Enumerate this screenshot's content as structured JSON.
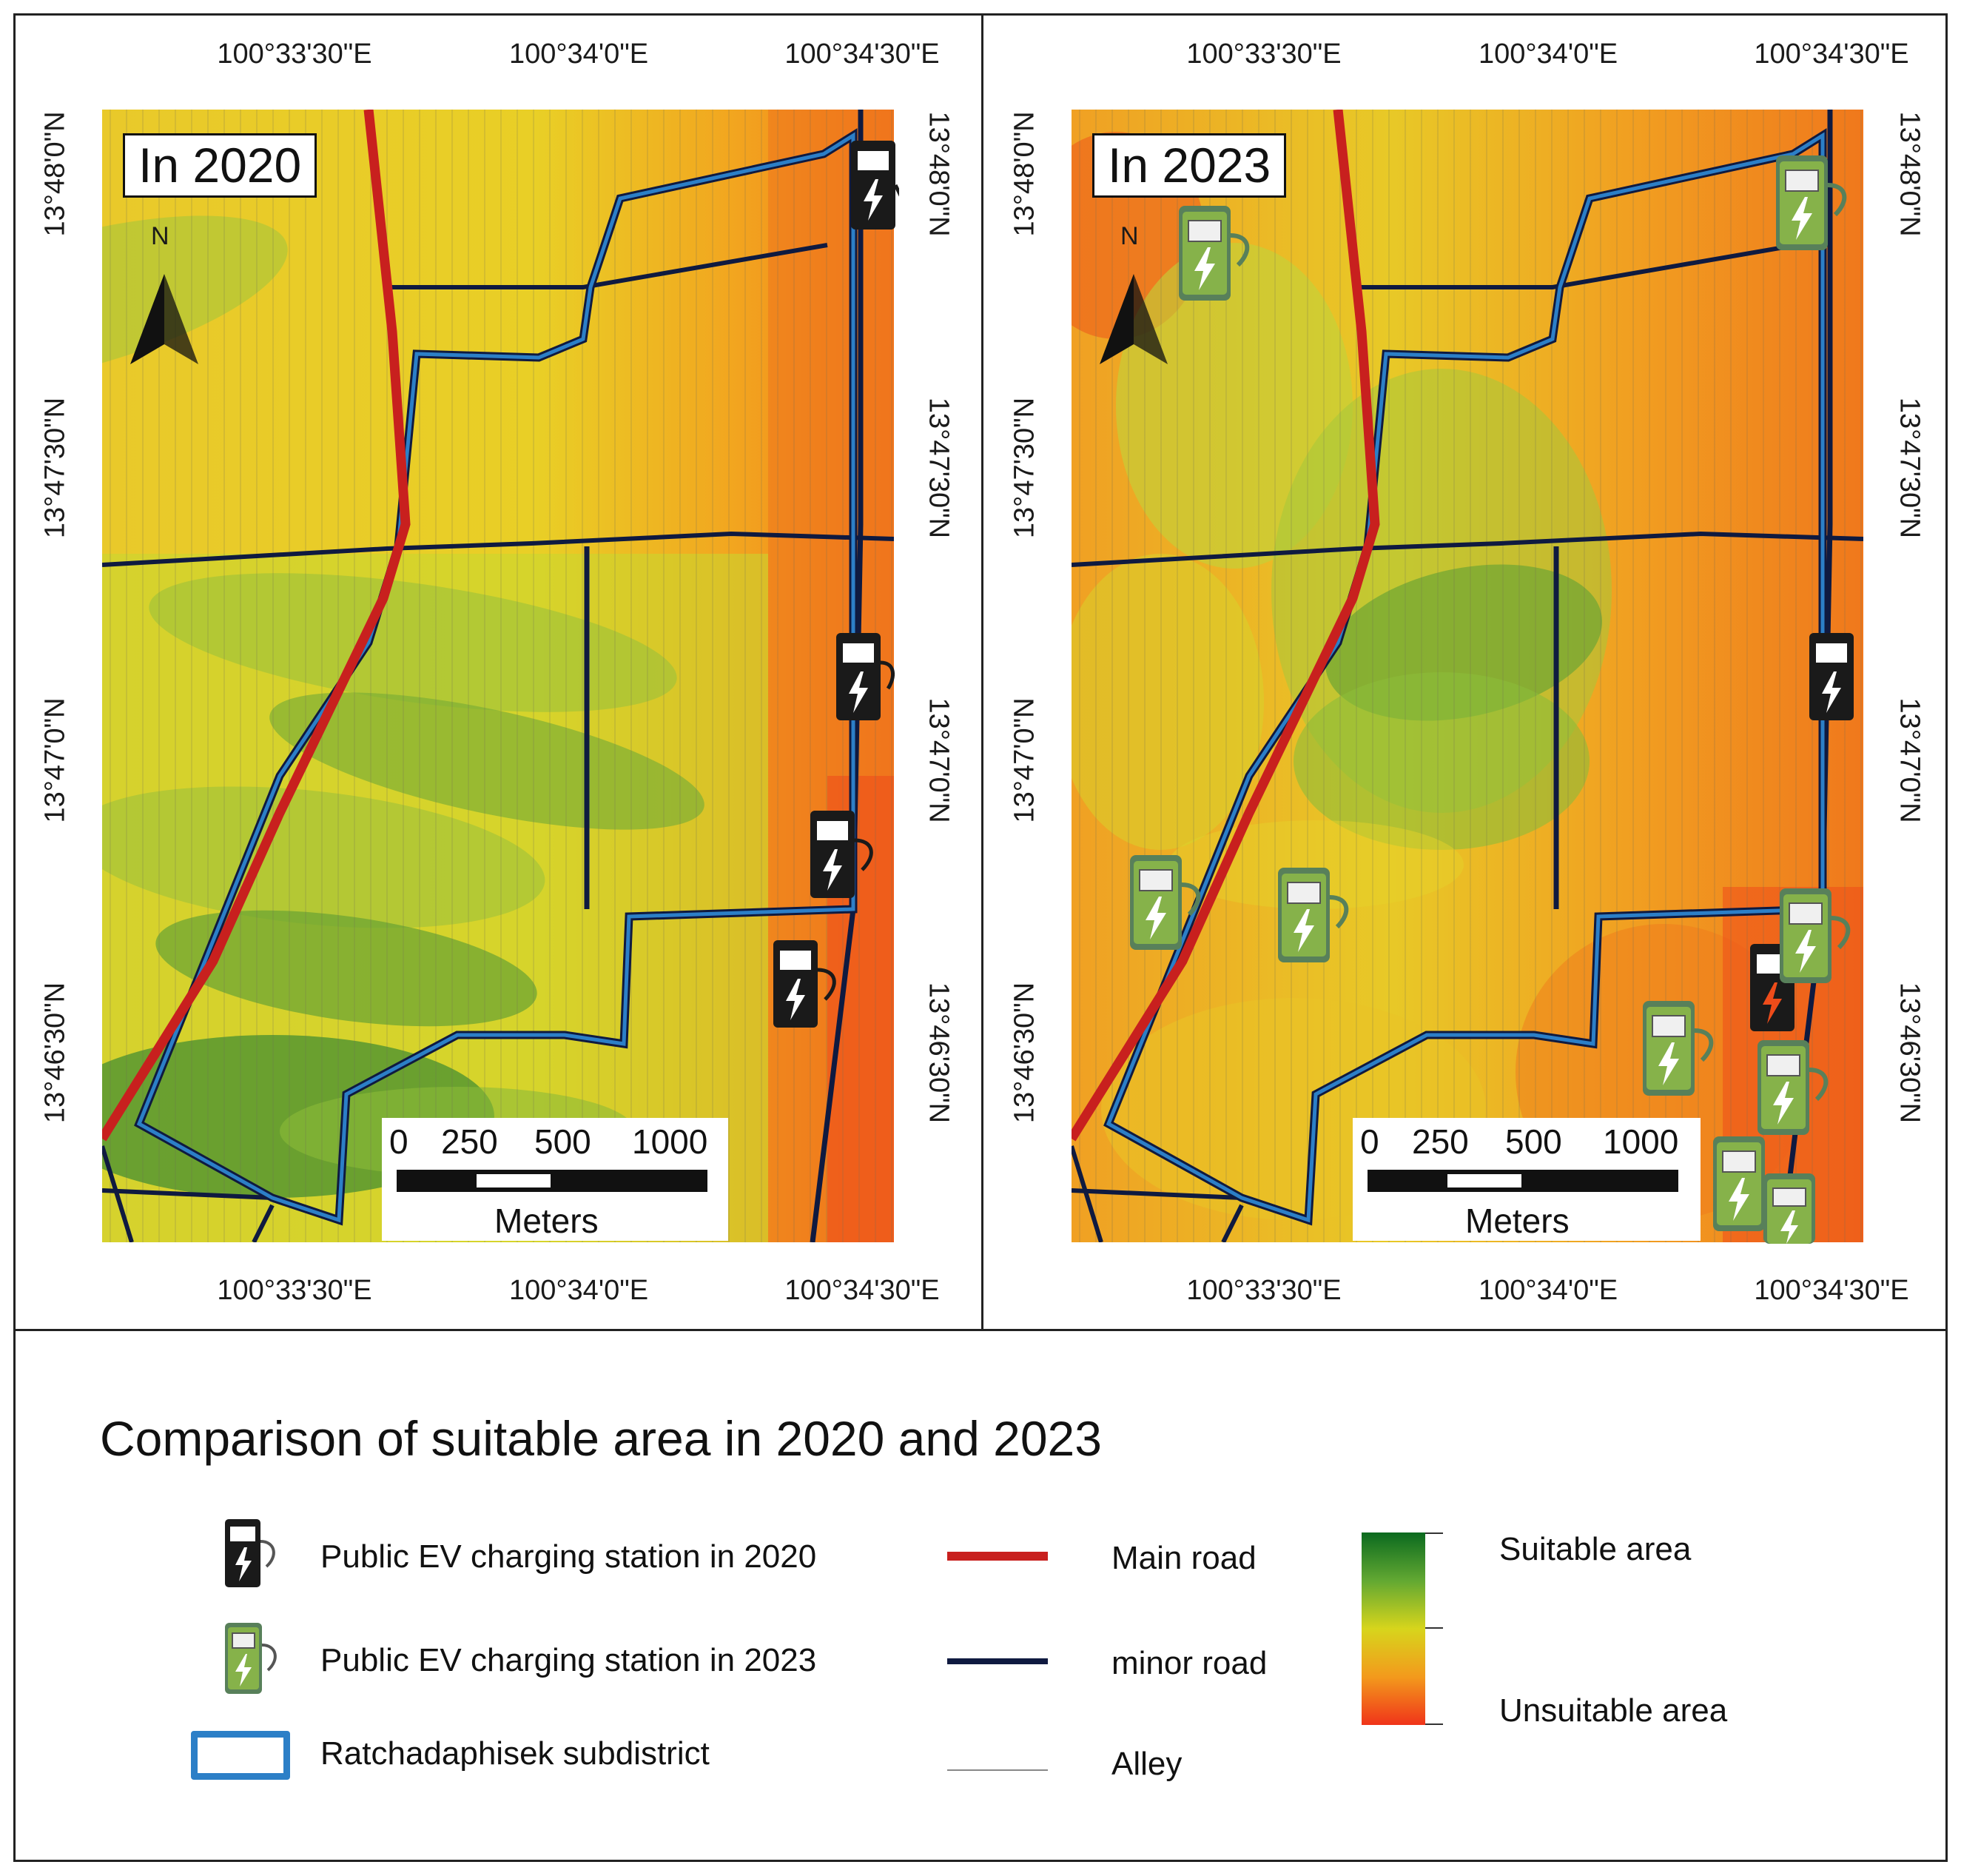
{
  "panels": [
    {
      "id": "2020",
      "year_label": "In 2020",
      "north_label": "N",
      "top_ticks": [
        "100°33'30\"E",
        "100°34'0\"E",
        "100°34'30\"E"
      ],
      "bottom_ticks": [
        "100°33'30\"E",
        "100°34'0\"E",
        "100°34'30\"E"
      ],
      "left_ticks": [
        "13°48'0\"N",
        "13°47'30\"N",
        "13°47'0\"N",
        "13°46'30\"N"
      ],
      "right_ticks": [
        "13°48'0\"N",
        "13°47'30\"N",
        "13°47'0\"N",
        "13°46'30\"N"
      ],
      "scale_labels": [
        "0",
        "250",
        "500",
        "1000"
      ],
      "scale_unit": "Meters"
    },
    {
      "id": "2023",
      "year_label": "In 2023",
      "north_label": "N",
      "top_ticks": [
        "100°33'30\"E",
        "100°34'0\"E",
        "100°34'30\"E"
      ],
      "bottom_ticks": [
        "100°33'30\"E",
        "100°34'0\"E",
        "100°34'30\"E"
      ],
      "left_ticks": [
        "13°48'0\"N",
        "13°47'30\"N",
        "13°47'0\"N",
        "13°46'30\"N"
      ],
      "right_ticks": [
        "13°48'0\"N",
        "13°47'30\"N",
        "13°47'0\"N",
        "13°46'30\"N"
      ],
      "scale_labels": [
        "0",
        "250",
        "500",
        "1000"
      ],
      "scale_unit": "Meters"
    }
  ],
  "legend": {
    "title": "Comparison of suitable area in 2020 and 2023",
    "station_2020": "Public EV charging station in 2020",
    "station_2023": "Public EV charging station in 2023",
    "subdistrict": "Ratchadaphisek subdistrict",
    "main_road": "Main road",
    "minor_road": "minor road",
    "alley": "Alley",
    "suitable": "Suitable area",
    "unsuitable": "Unsuitable area"
  },
  "colors": {
    "main_road": "#c8201e",
    "minor_road": "#0f1a40",
    "boundary": "#2c7fc7",
    "suitable": "#0b6a1f",
    "mid": "#d7d51c",
    "unsuitable": "#f0341a",
    "station_2020": "#1a1a1a",
    "station_2023": "#7fb04a"
  }
}
